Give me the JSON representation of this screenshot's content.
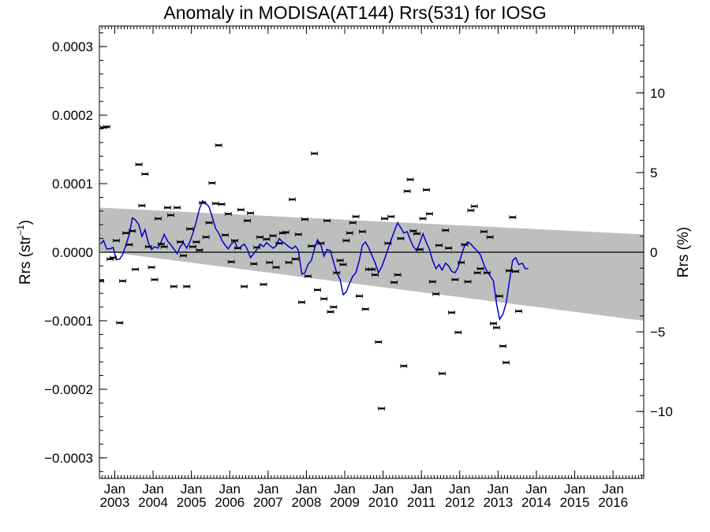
{
  "chart_data": {
    "type": "scatter",
    "title": "Anomaly in MODISA(AT144) Rrs(531) for IOSG",
    "ylabel_left": "Rrs (str",
    "ylabel_left_sup": "−1",
    "ylabel_left_close": ")",
    "ylabel_right": "Rrs (%)",
    "xlim": [
      2002.6,
      2016.8
    ],
    "ylim_left": [
      -0.00033,
      0.00033
    ],
    "ylim_right": [
      -14.2,
      14.2
    ],
    "y_ticks_left": [
      {
        "value": 0.0003,
        "label": "0.0003"
      },
      {
        "value": 0.0002,
        "label": "0.0002"
      },
      {
        "value": 0.0001,
        "label": "0.0001"
      },
      {
        "value": 0.0,
        "label": "0.0000"
      },
      {
        "value": -0.0001,
        "label": "−0.0001"
      },
      {
        "value": -0.0002,
        "label": "−0.0002"
      },
      {
        "value": -0.0003,
        "label": "−0.0003"
      }
    ],
    "y_ticks_right": [
      {
        "value": 10,
        "label": "10"
      },
      {
        "value": 5,
        "label": "5"
      },
      {
        "value": 0,
        "label": "0"
      },
      {
        "value": -5,
        "label": "−5"
      },
      {
        "value": -10,
        "label": "−10"
      }
    ],
    "x_ticks": [
      {
        "value": 2003.0,
        "month": "Jan",
        "year": "2003"
      },
      {
        "value": 2004.0,
        "month": "Jan",
        "year": "2004"
      },
      {
        "value": 2005.0,
        "month": "Jan",
        "year": "2005"
      },
      {
        "value": 2006.0,
        "month": "Jan",
        "year": "2006"
      },
      {
        "value": 2007.0,
        "month": "Jan",
        "year": "2007"
      },
      {
        "value": 2008.0,
        "month": "Jan",
        "year": "2008"
      },
      {
        "value": 2009.0,
        "month": "Jan",
        "year": "2009"
      },
      {
        "value": 2010.0,
        "month": "Jan",
        "year": "2010"
      },
      {
        "value": 2011.0,
        "month": "Jan",
        "year": "2011"
      },
      {
        "value": 2012.0,
        "month": "Jan",
        "year": "2012"
      },
      {
        "value": 2013.0,
        "month": "Jan",
        "year": "2013"
      },
      {
        "value": 2014.0,
        "month": "Jan",
        "year": "2014"
      },
      {
        "value": 2015.0,
        "month": "Jan",
        "year": "2015"
      },
      {
        "value": 2016.0,
        "month": "Jan",
        "year": "2016"
      }
    ],
    "band": {
      "color": "#bebebe",
      "upper": [
        [
          2002.6,
          6.5e-05
        ],
        [
          2016.8,
          2.6e-05
        ]
      ],
      "lower": [
        [
          2002.6,
          2e-06
        ],
        [
          2016.8,
          -0.0001
        ]
      ]
    },
    "zero_line": 0,
    "points": [
      [
        2002.63,
        -4.2e-05
      ],
      [
        2002.71,
        0.000182
      ],
      [
        2002.79,
        0.000183
      ],
      [
        2002.88,
        -1e-05
      ],
      [
        2002.96,
        -8e-06
      ],
      [
        2003.04,
        1.7e-05
      ],
      [
        2003.13,
        -0.000103
      ],
      [
        2003.21,
        -4.2e-05
      ],
      [
        2003.29,
        2.8e-05
      ],
      [
        2003.38,
        1.1e-05
      ],
      [
        2003.46,
        3.1e-05
      ],
      [
        2003.54,
        -2.5e-05
      ],
      [
        2003.63,
        0.000128
      ],
      [
        2003.71,
        6.8e-05
      ],
      [
        2003.79,
        0.000114
      ],
      [
        2003.88,
        8e-06
      ],
      [
        2003.96,
        -2.2e-05
      ],
      [
        2004.04,
        -4e-05
      ],
      [
        2004.13,
        4.9e-05
      ],
      [
        2004.21,
        1.2e-05
      ],
      [
        2004.29,
        8e-06
      ],
      [
        2004.38,
        6.5e-05
      ],
      [
        2004.46,
        5.4e-05
      ],
      [
        2004.54,
        -5e-05
      ],
      [
        2004.63,
        6.5e-05
      ],
      [
        2004.71,
        1.5e-05
      ],
      [
        2004.79,
        -5e-06
      ],
      [
        2004.88,
        -5e-05
      ],
      [
        2004.96,
        3.4e-05
      ],
      [
        2005.04,
        8e-06
      ],
      [
        2005.13,
        1.5e-05
      ],
      [
        2005.21,
        3e-06
      ],
      [
        2005.29,
        7.2e-05
      ],
      [
        2005.38,
        2.2e-05
      ],
      [
        2005.46,
        4.3e-05
      ],
      [
        2005.54,
        0.000101
      ],
      [
        2005.63,
        7.1e-05
      ],
      [
        2005.71,
        0.000156
      ],
      [
        2005.79,
        7e-05
      ],
      [
        2005.88,
        2.5e-05
      ],
      [
        2005.96,
        5.6e-05
      ],
      [
        2006.04,
        -1.4e-05
      ],
      [
        2006.13,
        1.7e-05
      ],
      [
        2006.21,
        6e-06
      ],
      [
        2006.29,
        6.2e-05
      ],
      [
        2006.38,
        -5e-05
      ],
      [
        2006.46,
        4.6e-05
      ],
      [
        2006.54,
        5.7e-05
      ],
      [
        2006.63,
        -1.7e-05
      ],
      [
        2006.71,
        7e-06
      ],
      [
        2006.79,
        2.2e-05
      ],
      [
        2006.88,
        -4.7e-05
      ],
      [
        2006.96,
        1.9e-05
      ],
      [
        2007.04,
        -1.5e-05
      ],
      [
        2007.13,
        2.4e-05
      ],
      [
        2007.21,
        -2.2e-05
      ],
      [
        2007.29,
        1.3e-05
      ],
      [
        2007.38,
        2.8e-05
      ],
      [
        2007.46,
        2.9e-05
      ],
      [
        2007.54,
        -1.5e-05
      ],
      [
        2007.63,
        7.7e-05
      ],
      [
        2007.71,
        -1e-05
      ],
      [
        2007.79,
        2.6e-05
      ],
      [
        2007.88,
        -7.3e-05
      ],
      [
        2007.96,
        4.8e-05
      ],
      [
        2008.04,
        -3.5e-05
      ],
      [
        2008.13,
        9e-06
      ],
      [
        2008.21,
        0.000144
      ],
      [
        2008.29,
        -5.5e-05
      ],
      [
        2008.38,
        1.3e-05
      ],
      [
        2008.46,
        -6.8e-05
      ],
      [
        2008.54,
        4.6e-05
      ],
      [
        2008.63,
        -8.7e-05
      ],
      [
        2008.71,
        -8e-05
      ],
      [
        2008.79,
        -3e-05
      ],
      [
        2008.88,
        -1.2e-05
      ],
      [
        2008.96,
        -1.8e-05
      ],
      [
        2009.04,
        1.7e-05
      ],
      [
        2009.13,
        2.8e-05
      ],
      [
        2009.21,
        4.3e-05
      ],
      [
        2009.29,
        5.2e-05
      ],
      [
        2009.38,
        -6.4e-05
      ],
      [
        2009.46,
        3e-05
      ],
      [
        2009.54,
        -8.3e-05
      ],
      [
        2009.63,
        -2.5e-05
      ],
      [
        2009.71,
        -2.5e-05
      ],
      [
        2009.79,
        -3.3e-05
      ],
      [
        2009.88,
        -0.000131
      ],
      [
        2009.96,
        -0.000228
      ],
      [
        2010.04,
        4.9e-05
      ],
      [
        2010.13,
        1.3e-05
      ],
      [
        2010.21,
        5.2e-05
      ],
      [
        2010.29,
        -4.4e-05
      ],
      [
        2010.38,
        -3.3e-05
      ],
      [
        2010.46,
        2e-05
      ],
      [
        2010.54,
        -0.000166
      ],
      [
        2010.63,
        8.9e-05
      ],
      [
        2010.71,
        0.000106
      ],
      [
        2010.79,
        3.1e-05
      ],
      [
        2010.88,
        2.7e-05
      ],
      [
        2010.96,
        4e-06
      ],
      [
        2011.04,
        4.9e-05
      ],
      [
        2011.13,
        9.1e-05
      ],
      [
        2011.21,
        5.6e-05
      ],
      [
        2011.29,
        -4.3e-05
      ],
      [
        2011.38,
        -6.1e-05
      ],
      [
        2011.46,
        1e-05
      ],
      [
        2011.54,
        -0.000177
      ],
      [
        2011.63,
        3.2e-05
      ],
      [
        2011.71,
        6e-06
      ],
      [
        2011.79,
        -8.8e-05
      ],
      [
        2011.88,
        -4e-05
      ],
      [
        2011.96,
        -0.000117
      ],
      [
        2012.04,
        -1.5e-05
      ],
      [
        2012.13,
        1.1e-05
      ],
      [
        2012.21,
        -4.3e-05
      ],
      [
        2012.29,
        6.1e-05
      ],
      [
        2012.38,
        6.7e-05
      ],
      [
        2012.46,
        -3e-05
      ],
      [
        2012.54,
        -2.4e-05
      ],
      [
        2012.63,
        3e-05
      ],
      [
        2012.71,
        -3e-05
      ],
      [
        2012.79,
        2.2e-05
      ],
      [
        2012.88,
        -0.000104
      ],
      [
        2012.96,
        -0.00011
      ],
      [
        2013.04,
        -6.4e-05
      ],
      [
        2013.13,
        -0.000137
      ],
      [
        2013.21,
        -0.000161
      ],
      [
        2013.29,
        -2.7e-05
      ],
      [
        2013.38,
        5.1e-05
      ],
      [
        2013.46,
        -2.8e-05
      ],
      [
        2013.54,
        -8.6e-05
      ]
    ],
    "running_mean": {
      "color": "#0000cc",
      "points": [
        [
          2002.63,
          1.2e-05
        ],
        [
          2002.71,
          1.7e-05
        ],
        [
          2002.79,
          5e-06
        ],
        [
          2002.88,
          5e-06
        ],
        [
          2002.96,
          7e-06
        ],
        [
          2003.04,
          -1.1e-05
        ],
        [
          2003.13,
          -1e-05
        ],
        [
          2003.21,
          -3e-06
        ],
        [
          2003.29,
          1e-05
        ],
        [
          2003.38,
          2.6e-05
        ],
        [
          2003.46,
          5e-05
        ],
        [
          2003.54,
          4.7e-05
        ],
        [
          2003.63,
          4e-05
        ],
        [
          2003.71,
          2.3e-05
        ],
        [
          2003.79,
          3.3e-05
        ],
        [
          2003.88,
          1.3e-05
        ],
        [
          2003.96,
          4e-06
        ],
        [
          2004.04,
          8e-06
        ],
        [
          2004.13,
          6e-06
        ],
        [
          2004.21,
          1.5e-05
        ],
        [
          2004.29,
          2.6e-05
        ],
        [
          2004.38,
          1.6e-05
        ],
        [
          2004.46,
          1.1e-05
        ],
        [
          2004.54,
          5e-06
        ],
        [
          2004.63,
          -2e-06
        ],
        [
          2004.71,
          8e-06
        ],
        [
          2004.79,
          1.4e-05
        ],
        [
          2004.88,
          6e-06
        ],
        [
          2004.96,
          1.5e-05
        ],
        [
          2005.04,
          2.8e-05
        ],
        [
          2005.13,
          4.5e-05
        ],
        [
          2005.21,
          6.3e-05
        ],
        [
          2005.29,
          7.5e-05
        ],
        [
          2005.38,
          7.1e-05
        ],
        [
          2005.46,
          6.6e-05
        ],
        [
          2005.54,
          5.2e-05
        ],
        [
          2005.63,
          3.5e-05
        ],
        [
          2005.71,
          2.8e-05
        ],
        [
          2005.79,
          1.8e-05
        ],
        [
          2005.88,
          1e-05
        ],
        [
          2005.96,
          5e-06
        ],
        [
          2006.04,
          1.2e-05
        ],
        [
          2006.13,
          1.6e-05
        ],
        [
          2006.21,
          5e-06
        ],
        [
          2006.29,
          8e-06
        ],
        [
          2006.38,
          1.2e-05
        ],
        [
          2006.46,
          4e-06
        ],
        [
          2006.54,
          -8e-06
        ],
        [
          2006.63,
          -2e-06
        ],
        [
          2006.71,
          4e-06
        ],
        [
          2006.79,
          1.2e-05
        ],
        [
          2006.88,
          8e-06
        ],
        [
          2006.96,
          1.4e-05
        ],
        [
          2007.04,
          1e-05
        ],
        [
          2007.13,
          6e-06
        ],
        [
          2007.21,
          9e-06
        ],
        [
          2007.29,
          2e-05
        ],
        [
          2007.38,
          1.5e-05
        ],
        [
          2007.46,
          1.2e-05
        ],
        [
          2007.54,
          8e-06
        ],
        [
          2007.63,
          5e-06
        ],
        [
          2007.71,
          9e-06
        ],
        [
          2007.79,
          3e-06
        ],
        [
          2007.88,
          -3.2e-05
        ],
        [
          2007.96,
          -3e-05
        ],
        [
          2008.04,
          -1.8e-05
        ],
        [
          2008.13,
          -1.2e-05
        ],
        [
          2008.21,
          5e-06
        ],
        [
          2008.29,
          1.8e-05
        ],
        [
          2008.38,
          1e-05
        ],
        [
          2008.46,
          -6e-06
        ],
        [
          2008.54,
          4e-06
        ],
        [
          2008.63,
          2e-06
        ],
        [
          2008.71,
          -1.5e-05
        ],
        [
          2008.79,
          -3e-05
        ],
        [
          2008.88,
          -4e-05
        ],
        [
          2008.96,
          -6.2e-05
        ],
        [
          2009.04,
          -5.8e-05
        ],
        [
          2009.13,
          -4.5e-05
        ],
        [
          2009.21,
          -3.5e-05
        ],
        [
          2009.29,
          -3e-05
        ],
        [
          2009.38,
          -1.2e-05
        ],
        [
          2009.46,
          1e-05
        ],
        [
          2009.54,
          1.5e-05
        ],
        [
          2009.63,
          6e-06
        ],
        [
          2009.71,
          -5e-06
        ],
        [
          2009.79,
          -1.5e-05
        ],
        [
          2009.88,
          -3e-05
        ],
        [
          2009.96,
          -2.2e-05
        ],
        [
          2010.04,
          -1e-05
        ],
        [
          2010.13,
          5e-06
        ],
        [
          2010.21,
          1.8e-05
        ],
        [
          2010.29,
          3e-05
        ],
        [
          2010.38,
          4.3e-05
        ],
        [
          2010.46,
          3.6e-05
        ],
        [
          2010.54,
          2.8e-05
        ],
        [
          2010.63,
          3e-05
        ],
        [
          2010.71,
          1.8e-05
        ],
        [
          2010.79,
          8e-06
        ],
        [
          2010.88,
          2e-06
        ],
        [
          2010.96,
          1.4e-05
        ],
        [
          2011.04,
          2.7e-05
        ],
        [
          2011.13,
          1.4e-05
        ],
        [
          2011.21,
          4e-06
        ],
        [
          2011.29,
          -1.2e-05
        ],
        [
          2011.38,
          -2.4e-05
        ],
        [
          2011.46,
          -1.8e-05
        ],
        [
          2011.54,
          -2.6e-05
        ],
        [
          2011.63,
          -1.6e-05
        ],
        [
          2011.71,
          -2e-05
        ],
        [
          2011.79,
          -2.8e-05
        ],
        [
          2011.88,
          -3e-05
        ],
        [
          2011.96,
          -2.2e-05
        ],
        [
          2012.04,
          -5e-06
        ],
        [
          2012.13,
          1e-05
        ],
        [
          2012.21,
          1.5e-05
        ],
        [
          2012.29,
          1.2e-05
        ],
        [
          2012.38,
          6e-06
        ],
        [
          2012.46,
          2e-06
        ],
        [
          2012.54,
          -4e-06
        ],
        [
          2012.63,
          -1.8e-05
        ],
        [
          2012.71,
          -2.8e-05
        ],
        [
          2012.79,
          -3.4e-05
        ],
        [
          2012.88,
          -4.2e-05
        ],
        [
          2012.96,
          -7.5e-05
        ],
        [
          2013.04,
          -9.8e-05
        ],
        [
          2013.13,
          -9e-05
        ],
        [
          2013.21,
          -7.4e-05
        ],
        [
          2013.29,
          -4.5e-05
        ],
        [
          2013.38,
          -1.2e-05
        ],
        [
          2013.46,
          -8e-06
        ],
        [
          2013.54,
          -1.8e-05
        ],
        [
          2013.63,
          -1.6e-05
        ],
        [
          2013.71,
          -2.4e-05
        ],
        [
          2013.79,
          -2.4e-05
        ]
      ]
    }
  }
}
